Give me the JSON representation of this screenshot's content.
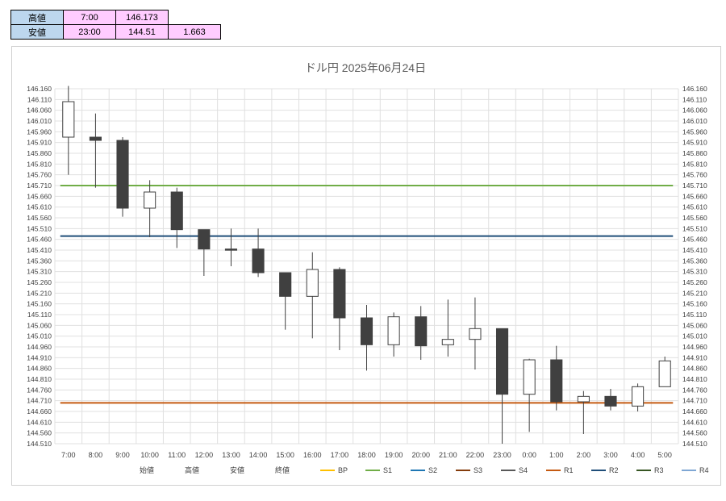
{
  "summary": {
    "high": {
      "label": "高値",
      "time": "7:00",
      "value": "146.173",
      "extra": ""
    },
    "low": {
      "label": "安値",
      "time": "23:00",
      "value": "144.51",
      "extra": "1.663"
    }
  },
  "chart_data": {
    "type": "candlestick",
    "title": "ドル円  2025年06月24日",
    "categories": [
      "7:00",
      "8:00",
      "9:00",
      "10:00",
      "11:00",
      "12:00",
      "13:00",
      "14:00",
      "15:00",
      "16:00",
      "17:00",
      "18:00",
      "19:00",
      "20:00",
      "21:00",
      "22:00",
      "23:00",
      "0:00",
      "1:00",
      "2:00",
      "3:00",
      "4:00",
      "5:00"
    ],
    "ohlc": [
      {
        "open": 145.935,
        "high": 146.173,
        "low": 145.76,
        "close": 146.1
      },
      {
        "open": 145.935,
        "high": 146.045,
        "low": 145.7,
        "close": 145.92
      },
      {
        "open": 145.92,
        "high": 145.935,
        "low": 145.565,
        "close": 145.605
      },
      {
        "open": 145.605,
        "high": 145.735,
        "low": 145.47,
        "close": 145.68
      },
      {
        "open": 145.68,
        "high": 145.7,
        "low": 145.42,
        "close": 145.505
      },
      {
        "open": 145.505,
        "high": 145.505,
        "low": 145.29,
        "close": 145.415
      },
      {
        "open": 145.415,
        "high": 145.51,
        "low": 145.335,
        "close": 145.41
      },
      {
        "open": 145.415,
        "high": 145.51,
        "low": 145.285,
        "close": 145.305
      },
      {
        "open": 145.305,
        "high": 145.305,
        "low": 145.04,
        "close": 145.195
      },
      {
        "open": 145.195,
        "high": 145.4,
        "low": 145.0,
        "close": 145.32
      },
      {
        "open": 145.32,
        "high": 145.33,
        "low": 144.945,
        "close": 145.095
      },
      {
        "open": 145.095,
        "high": 145.155,
        "low": 144.85,
        "close": 144.97
      },
      {
        "open": 144.97,
        "high": 145.12,
        "low": 144.915,
        "close": 145.1
      },
      {
        "open": 145.1,
        "high": 145.15,
        "low": 144.9,
        "close": 144.965
      },
      {
        "open": 144.97,
        "high": 145.18,
        "low": 144.915,
        "close": 144.995
      },
      {
        "open": 144.995,
        "high": 145.19,
        "low": 144.855,
        "close": 145.045
      },
      {
        "open": 145.045,
        "high": 145.045,
        "low": 144.51,
        "close": 144.74
      },
      {
        "open": 144.74,
        "high": 144.905,
        "low": 144.565,
        "close": 144.9
      },
      {
        "open": 144.9,
        "high": 144.965,
        "low": 144.665,
        "close": 144.705
      },
      {
        "open": 144.705,
        "high": 144.755,
        "low": 144.555,
        "close": 144.73
      },
      {
        "open": 144.73,
        "high": 144.765,
        "low": 144.665,
        "close": 144.685
      },
      {
        "open": 144.685,
        "high": 144.79,
        "low": 144.66,
        "close": 144.775
      },
      {
        "open": 144.775,
        "high": 144.915,
        "low": 144.775,
        "close": 144.895
      }
    ],
    "ylim": [
      144.51,
      146.16
    ],
    "yticks": [
      "146.160",
      "146.110",
      "146.060",
      "146.010",
      "145.960",
      "145.910",
      "145.860",
      "145.810",
      "145.760",
      "145.710",
      "145.660",
      "145.610",
      "145.560",
      "145.510",
      "145.460",
      "145.410",
      "145.360",
      "145.310",
      "145.260",
      "145.210",
      "145.160",
      "145.110",
      "145.060",
      "145.010",
      "144.960",
      "144.910",
      "144.860",
      "144.810",
      "144.760",
      "144.710",
      "144.660",
      "144.610",
      "144.560",
      "144.510"
    ],
    "hlines": [
      {
        "name": "S1",
        "value": 145.71,
        "color": "#70ad47"
      },
      {
        "name": "R2",
        "value": 145.475,
        "color": "#1f4e79"
      },
      {
        "name": "R1",
        "value": 144.7,
        "color": "#c55a11"
      }
    ],
    "legend": [
      {
        "name": "始値",
        "color": ""
      },
      {
        "name": "高値",
        "color": ""
      },
      {
        "name": "安値",
        "color": ""
      },
      {
        "name": "終値",
        "color": ""
      },
      {
        "name": "BP",
        "color": "#ffc000"
      },
      {
        "name": "S1",
        "color": "#70ad47"
      },
      {
        "name": "S2",
        "color": "#1f77b4"
      },
      {
        "name": "S3",
        "color": "#843c0c"
      },
      {
        "name": "S4",
        "color": "#595959"
      },
      {
        "name": "R1",
        "color": "#c55a11"
      },
      {
        "name": "R2",
        "color": "#1f4e79"
      },
      {
        "name": "R3",
        "color": "#375623"
      },
      {
        "name": "R4",
        "color": "#7fa7d4"
      }
    ],
    "legend_position": "bottom",
    "grid": true,
    "up_color": "#ffffff",
    "down_color": "#404040"
  }
}
